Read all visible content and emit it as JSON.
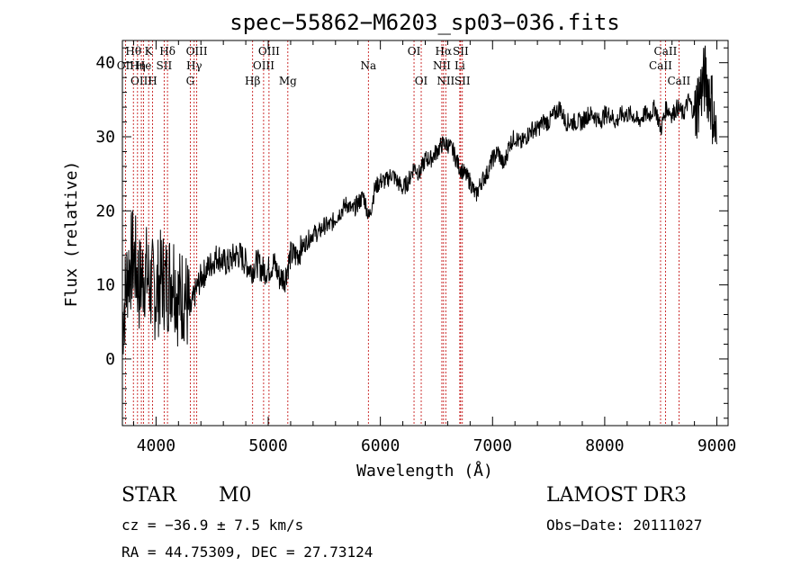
{
  "chart_data": {
    "type": "line",
    "title": "spec−55862−M6203_sp03−036.fits",
    "xlabel": "Wavelength (Å)",
    "ylabel": "Flux (relative)",
    "xlim": [
      3700,
      9100
    ],
    "ylim": [
      -9,
      43
    ],
    "x_ticks": [
      4000,
      5000,
      6000,
      7000,
      8000,
      9000
    ],
    "y_ticks": [
      0,
      10,
      20,
      30,
      40
    ],
    "line_color": "#000000",
    "marker_color": "#c00000",
    "series": [
      {
        "name": "spectrum",
        "x": [
          3700,
          3750,
          3800,
          3850,
          3900,
          3950,
          4000,
          4050,
          4100,
          4150,
          4200,
          4250,
          4300,
          4350,
          4400,
          4450,
          4500,
          4550,
          4600,
          4650,
          4700,
          4750,
          4800,
          4850,
          4900,
          4950,
          5000,
          5050,
          5100,
          5150,
          5200,
          5250,
          5300,
          5350,
          5400,
          5450,
          5500,
          5550,
          5600,
          5650,
          5700,
          5750,
          5800,
          5850,
          5900,
          5950,
          6000,
          6050,
          6100,
          6150,
          6200,
          6250,
          6300,
          6350,
          6400,
          6450,
          6500,
          6550,
          6600,
          6650,
          6700,
          6750,
          6800,
          6850,
          6900,
          6950,
          7000,
          7050,
          7100,
          7150,
          7200,
          7250,
          7300,
          7350,
          7400,
          7450,
          7500,
          7550,
          7600,
          7650,
          7700,
          7750,
          7800,
          7850,
          7900,
          7950,
          8000,
          8050,
          8100,
          8150,
          8200,
          8250,
          8300,
          8350,
          8400,
          8450,
          8500,
          8550,
          8600,
          8650,
          8700,
          8750,
          8800,
          8850,
          8900,
          8950,
          9000
        ],
        "values": [
          5,
          12,
          14,
          10,
          12,
          10,
          9,
          11,
          10,
          12,
          8,
          9,
          6,
          9,
          11,
          12,
          13,
          14,
          13,
          13,
          14,
          14,
          13,
          12,
          13,
          12,
          12,
          13,
          11,
          11,
          14,
          14,
          15,
          16,
          17,
          17,
          18,
          18,
          19,
          20,
          21,
          20,
          21,
          22,
          19,
          23,
          24,
          24,
          25,
          24,
          23,
          24,
          26,
          25,
          27,
          27,
          28,
          29,
          29,
          28,
          26,
          25,
          24,
          22,
          24,
          25,
          27,
          28,
          26,
          29,
          30,
          29,
          30,
          31,
          31,
          32,
          32,
          33,
          34,
          32,
          32,
          32,
          32,
          33,
          33,
          32,
          33,
          33,
          32,
          33,
          33,
          33,
          32,
          33,
          33,
          34,
          31,
          34,
          33,
          34,
          33,
          35,
          33,
          36,
          38,
          35,
          29
        ]
      }
    ],
    "emission_lines": [
      {
        "label": "Hθ",
        "wavelength": 3798,
        "row": 1
      },
      {
        "label": "OII",
        "wavelength": 3727,
        "row": 2
      },
      {
        "label": "OIII",
        "wavelength": 3869,
        "row": 3
      },
      {
        "label": "K",
        "wavelength": 3934,
        "row": 1
      },
      {
        "label": "Hη",
        "wavelength": 3835,
        "row": 2
      },
      {
        "label": "He",
        "wavelength": 3889,
        "row": 2
      },
      {
        "label": "H",
        "wavelength": 3969,
        "row": 3
      },
      {
        "label": "SII",
        "wavelength": 4072,
        "row": 2
      },
      {
        "label": "Hδ",
        "wavelength": 4102,
        "row": 1
      },
      {
        "label": "OIII",
        "wavelength": 4363,
        "row": 1
      },
      {
        "label": "Hγ",
        "wavelength": 4340,
        "row": 2
      },
      {
        "label": "G",
        "wavelength": 4305,
        "row": 3
      },
      {
        "label": "Hβ",
        "wavelength": 4861,
        "row": 3
      },
      {
        "label": "OIII",
        "wavelength": 5007,
        "row": 1
      },
      {
        "label": "OIII",
        "wavelength": 4959,
        "row": 2
      },
      {
        "label": "Mg",
        "wavelength": 5175,
        "row": 3
      },
      {
        "label": "Na",
        "wavelength": 5893,
        "row": 2
      },
      {
        "label": "OI",
        "wavelength": 6300,
        "row": 1
      },
      {
        "label": "OI",
        "wavelength": 6364,
        "row": 3
      },
      {
        "label": "Hα",
        "wavelength": 6563,
        "row": 1
      },
      {
        "label": "NII",
        "wavelength": 6548,
        "row": 2
      },
      {
        "label": "NII",
        "wavelength": 6583,
        "row": 3
      },
      {
        "label": "SII",
        "wavelength": 6716,
        "row": 1
      },
      {
        "label": "Li",
        "wavelength": 6708,
        "row": 2
      },
      {
        "label": "SII",
        "wavelength": 6731,
        "row": 3
      },
      {
        "label": "CaII",
        "wavelength": 8542,
        "row": 1
      },
      {
        "label": "CaII",
        "wavelength": 8498,
        "row": 2
      },
      {
        "label": "CaII",
        "wavelength": 8662,
        "row": 3
      }
    ]
  },
  "info": {
    "class": "STAR",
    "subclass": "M0",
    "survey": "LAMOST DR3",
    "cz": "cz = −36.9 ± 7.5 km/s",
    "obs_date": "Obs−Date: 20111027",
    "coords": "RA =  44.75309, DEC =  27.73124"
  }
}
